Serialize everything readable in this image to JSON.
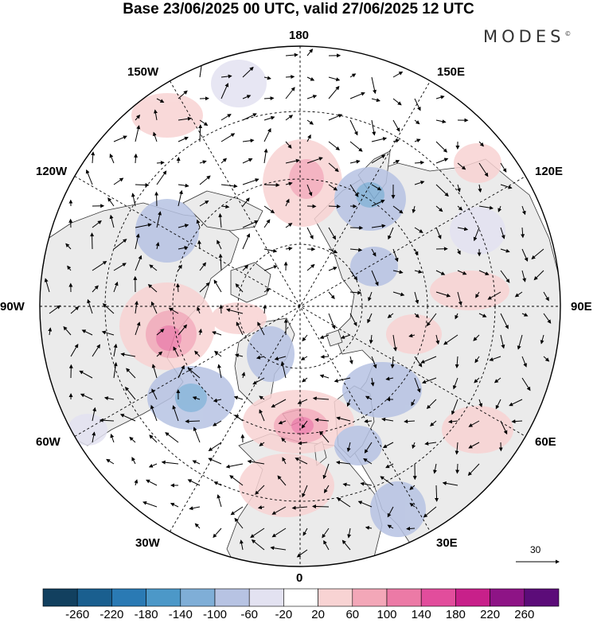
{
  "title": "Base 23/06/2025 00 UTC, valid 27/06/2025 12 UTC",
  "brand": "MODES",
  "brand_mark": "©",
  "map": {
    "projection": "north-polar-stereographic",
    "longitude_labels": [
      "180",
      "150E",
      "120E",
      "90E",
      "60E",
      "30E",
      "0",
      "30W",
      "60W",
      "90W",
      "120W",
      "150W"
    ],
    "reference_vector": {
      "label": "30"
    },
    "land_color": "#ebebeb",
    "ocean_color": "#ffffff"
  },
  "colorbar": {
    "ticks": [
      "-260",
      "-220",
      "-180",
      "-140",
      "-100",
      "-60",
      "-20",
      "20",
      "60",
      "100",
      "140",
      "180",
      "220",
      "260"
    ],
    "colors": [
      "#12405f",
      "#1a5f8f",
      "#2a7ab4",
      "#4c98c8",
      "#7faed7",
      "#b7c3e3",
      "#e3e2f1",
      "#ffffff",
      "#f8d3d3",
      "#f3a7b8",
      "#ec7aa6",
      "#e24d9c",
      "#c8208a",
      "#8e1486",
      "#5c0c79"
    ]
  }
}
